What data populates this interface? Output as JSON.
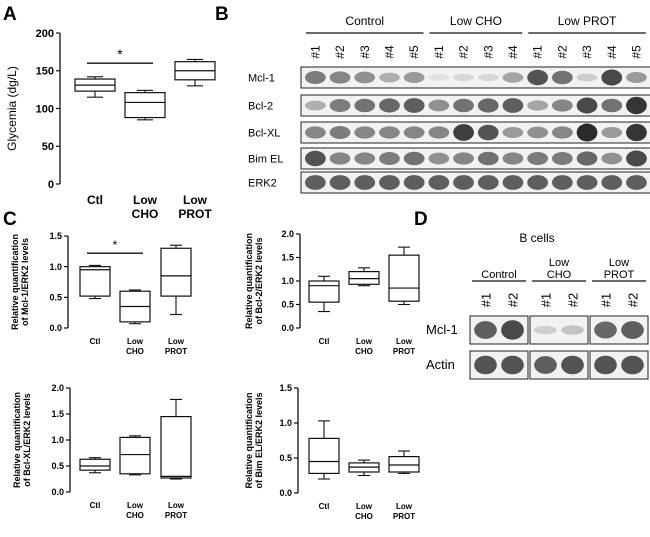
{
  "panel_labels": [
    "A",
    "B",
    "C",
    "D"
  ],
  "western_b": {
    "groups": [
      "Control",
      "Low CHO",
      "Low PROT"
    ],
    "lanes": [
      "#1",
      "#2",
      "#3",
      "#4",
      "#5",
      "#1",
      "#2",
      "#3",
      "#4",
      "#1",
      "#2",
      "#3",
      "#4",
      "#5"
    ],
    "rows": [
      {
        "name": "Mcl-1",
        "intensity": [
          0.55,
          0.5,
          0.45,
          0.3,
          0.4,
          0.05,
          0.1,
          0.1,
          0.35,
          0.75,
          0.6,
          0.15,
          0.8,
          0.4
        ]
      },
      {
        "name": "Bcl-2",
        "intensity": [
          0.3,
          0.55,
          0.6,
          0.65,
          0.7,
          0.45,
          0.6,
          0.65,
          0.7,
          0.35,
          0.5,
          0.8,
          0.6,
          0.9
        ]
      },
      {
        "name": "Bcl-XL",
        "intensity": [
          0.5,
          0.55,
          0.5,
          0.5,
          0.5,
          0.5,
          0.85,
          0.75,
          0.4,
          0.45,
          0.5,
          0.95,
          0.4,
          0.9
        ]
      },
      {
        "name": "Bim EL",
        "intensity": [
          0.75,
          0.5,
          0.5,
          0.55,
          0.6,
          0.45,
          0.5,
          0.6,
          0.5,
          0.55,
          0.55,
          0.65,
          0.45,
          0.8
        ]
      },
      {
        "name": "ERK2",
        "intensity": [
          0.7,
          0.7,
          0.7,
          0.7,
          0.7,
          0.7,
          0.7,
          0.7,
          0.7,
          0.7,
          0.7,
          0.7,
          0.7,
          0.7
        ]
      }
    ]
  },
  "western_d": {
    "title": "B cells",
    "groups": [
      "Control",
      "Low\nCHO",
      "Low\nPROT"
    ],
    "lanes": [
      "#1",
      "#2",
      "#1",
      "#2",
      "#1",
      "#2"
    ],
    "rows": [
      {
        "name": "Mcl-1",
        "intensity": [
          0.7,
          0.8,
          0.15,
          0.2,
          0.65,
          0.7
        ]
      },
      {
        "name": "Actin",
        "intensity": [
          0.75,
          0.75,
          0.7,
          0.75,
          0.75,
          0.75
        ]
      }
    ]
  },
  "chart_data": [
    {
      "id": "A",
      "type": "boxplot",
      "ylabel": "Glycemia (dg/L)",
      "ylim": [
        0,
        200
      ],
      "yticks": [
        0,
        50,
        100,
        150,
        200
      ],
      "categories": [
        "Ctl",
        "Low\nCHO",
        "Low\nPROT"
      ],
      "boxes": [
        {
          "min": 115,
          "q1": 123,
          "median": 131,
          "q3": 139,
          "max": 142
        },
        {
          "min": 85,
          "q1": 88,
          "median": 108,
          "q3": 121,
          "max": 124
        },
        {
          "min": 130,
          "q1": 138,
          "median": 150,
          "q3": 162,
          "max": 165
        }
      ],
      "significance": {
        "between": [
          0,
          1
        ],
        "at": 160,
        "label": "*"
      }
    },
    {
      "id": "C1",
      "type": "boxplot",
      "ylabel": "Relative quantification\nof Mcl-1/ERK2 levels",
      "ylim": [
        0,
        1.5
      ],
      "yticks": [
        0,
        0.5,
        1.0,
        1.5
      ],
      "categories": [
        "Ctl",
        "Low\nCHO",
        "Low\nPROT"
      ],
      "boxes": [
        {
          "min": 0.48,
          "q1": 0.52,
          "median": 0.95,
          "q3": 1.0,
          "max": 1.02
        },
        {
          "min": 0.07,
          "q1": 0.1,
          "median": 0.35,
          "q3": 0.6,
          "max": 0.62
        },
        {
          "min": 0.22,
          "q1": 0.52,
          "median": 0.85,
          "q3": 1.3,
          "max": 1.35
        }
      ],
      "significance": {
        "between": [
          0,
          1
        ],
        "at": 1.22,
        "label": "*"
      }
    },
    {
      "id": "C2",
      "type": "boxplot",
      "ylabel": "Relative quantification\nof Bcl-2/ERK2 levels",
      "ylim": [
        0,
        2.0
      ],
      "yticks": [
        0,
        0.5,
        1.0,
        1.5,
        2.0
      ],
      "categories": [
        "Ctl",
        "Low\nCHO",
        "Low\nPROT"
      ],
      "boxes": [
        {
          "min": 0.35,
          "q1": 0.55,
          "median": 0.9,
          "q3": 1.0,
          "max": 1.1
        },
        {
          "min": 0.9,
          "q1": 0.93,
          "median": 1.05,
          "q3": 1.2,
          "max": 1.28
        },
        {
          "min": 0.5,
          "q1": 0.57,
          "median": 0.85,
          "q3": 1.55,
          "max": 1.72
        }
      ]
    },
    {
      "id": "C3",
      "type": "boxplot",
      "ylabel": "Relative quantification\nof Bcl-XL/ERK2 levels",
      "ylim": [
        0,
        2.0
      ],
      "yticks": [
        0,
        0.5,
        1.0,
        1.5,
        2.0
      ],
      "categories": [
        "Ctl",
        "Low\nCHO",
        "Low\nPROT"
      ],
      "boxes": [
        {
          "min": 0.37,
          "q1": 0.42,
          "median": 0.5,
          "q3": 0.63,
          "max": 0.66
        },
        {
          "min": 0.33,
          "q1": 0.35,
          "median": 0.72,
          "q3": 1.05,
          "max": 1.08
        },
        {
          "min": 0.25,
          "q1": 0.27,
          "median": 0.3,
          "q3": 1.45,
          "max": 1.78
        }
      ]
    },
    {
      "id": "C4",
      "type": "boxplot",
      "ylabel": "Relative quantification\nof Bim EL/ERK2 levels",
      "ylim": [
        0,
        1.5
      ],
      "yticks": [
        0,
        0.5,
        1.0,
        1.5
      ],
      "categories": [
        "Ctl",
        "Low\nCHO",
        "Low\nPROT"
      ],
      "boxes": [
        {
          "min": 0.2,
          "q1": 0.28,
          "median": 0.45,
          "q3": 0.78,
          "max": 1.03
        },
        {
          "min": 0.25,
          "q1": 0.3,
          "median": 0.37,
          "q3": 0.43,
          "max": 0.47
        },
        {
          "min": 0.28,
          "q1": 0.3,
          "median": 0.4,
          "q3": 0.52,
          "max": 0.6
        }
      ]
    }
  ]
}
